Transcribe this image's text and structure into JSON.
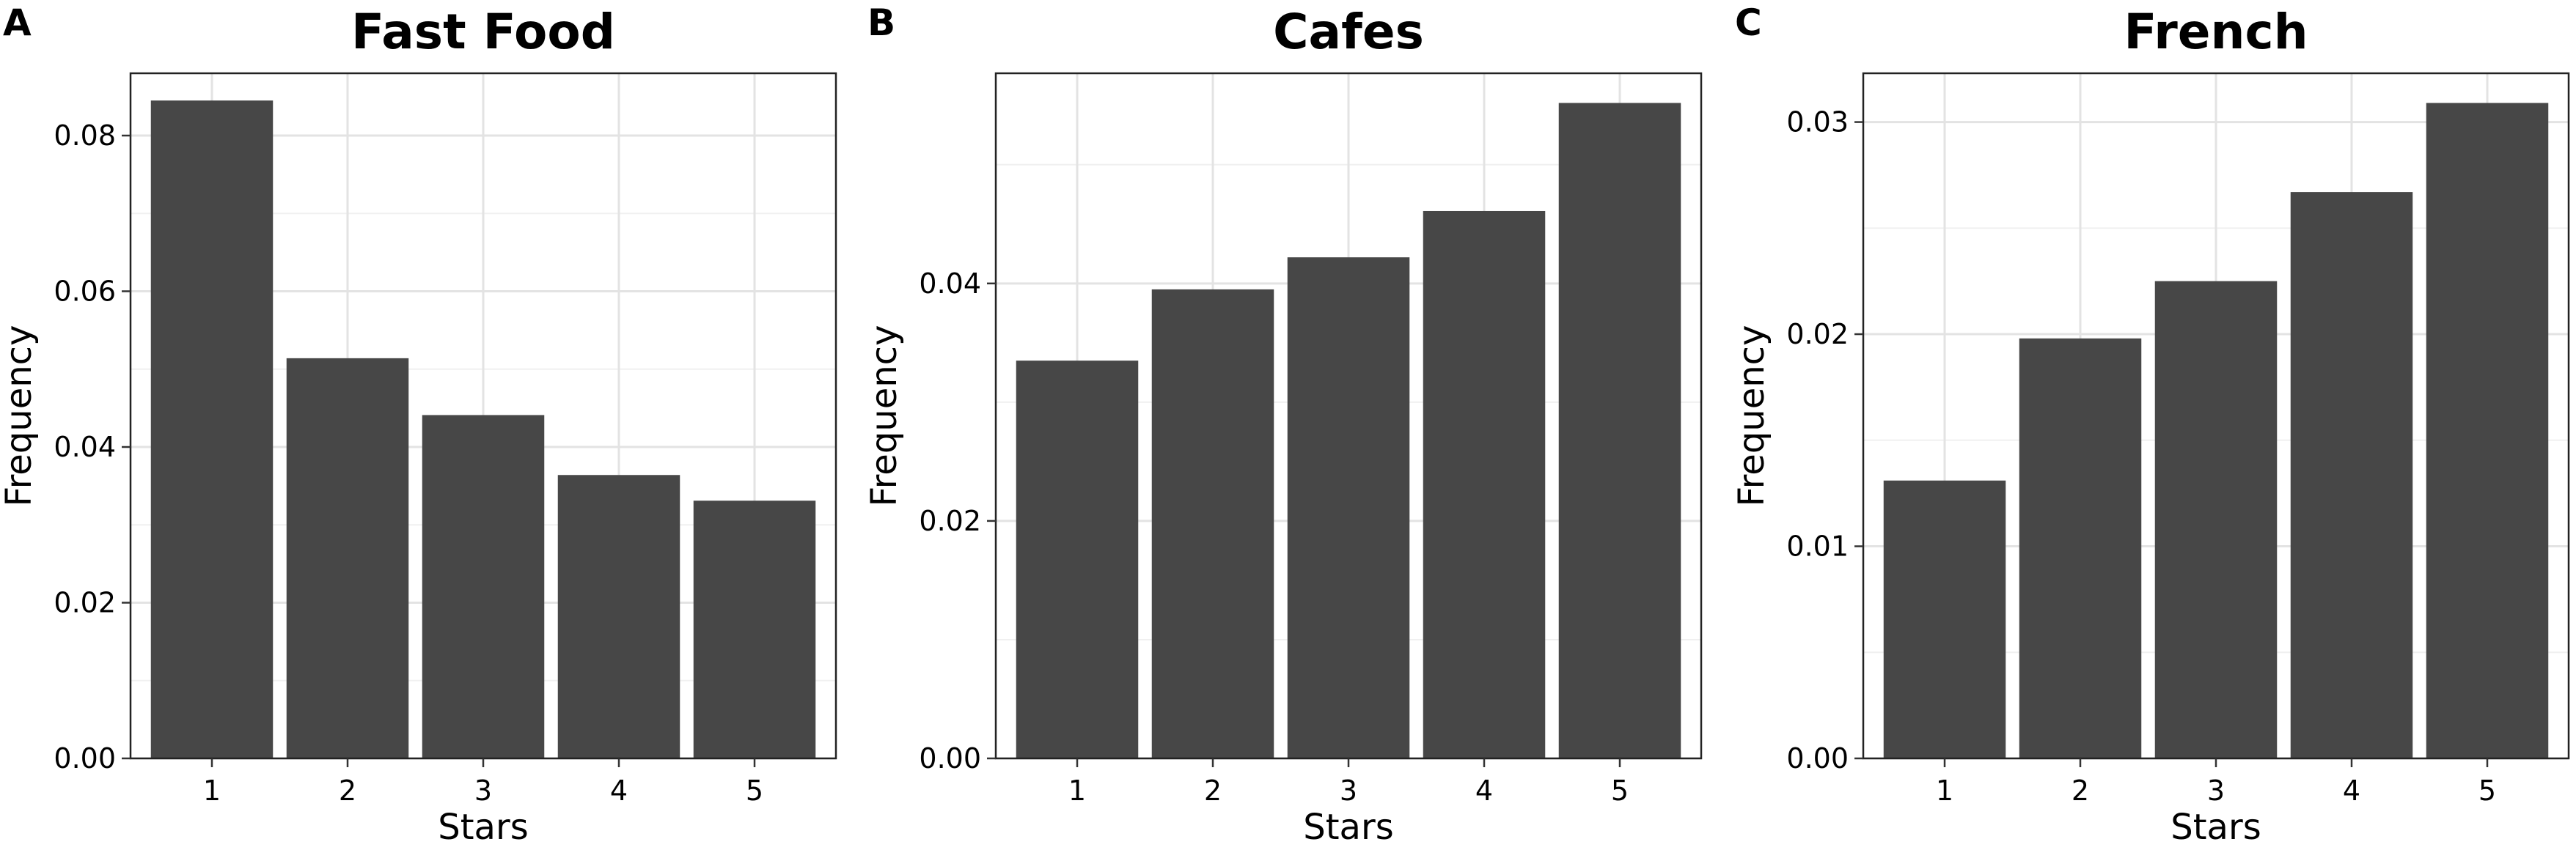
{
  "chart_data": [
    {
      "panel": "A",
      "type": "bar",
      "title": "Fast Food",
      "xlabel": "Stars",
      "ylabel": "Frequency",
      "categories": [
        "1",
        "2",
        "3",
        "4",
        "5"
      ],
      "values": [
        0.0845,
        0.0514,
        0.0441,
        0.0364,
        0.0331
      ],
      "ylim": [
        0,
        0.088
      ],
      "yticks": [
        0.0,
        0.02,
        0.04,
        0.06,
        0.08
      ],
      "ytick_labels": [
        "0.00",
        "0.02",
        "0.04",
        "0.06",
        "0.08"
      ],
      "grid": true
    },
    {
      "panel": "B",
      "type": "bar",
      "title": "Cafes",
      "xlabel": "Stars",
      "ylabel": "Frequency",
      "categories": [
        "1",
        "2",
        "3",
        "4",
        "5"
      ],
      "values": [
        0.0335,
        0.0395,
        0.0422,
        0.0461,
        0.0552
      ],
      "ylim": [
        0,
        0.0577
      ],
      "yticks": [
        0.0,
        0.02,
        0.04
      ],
      "ytick_labels": [
        "0.00",
        "0.02",
        "0.04"
      ],
      "grid": true
    },
    {
      "panel": "C",
      "type": "bar",
      "title": "French",
      "xlabel": "Stars",
      "ylabel": "Frequency",
      "categories": [
        "1",
        "2",
        "3",
        "4",
        "5"
      ],
      "values": [
        0.0131,
        0.0198,
        0.0225,
        0.0267,
        0.0309
      ],
      "ylim": [
        0,
        0.0323
      ],
      "yticks": [
        0.0,
        0.01,
        0.02,
        0.03
      ],
      "ytick_labels": [
        "0.00",
        "0.01",
        "0.02",
        "0.03"
      ],
      "grid": true
    }
  ],
  "colors": {
    "bar": "#474747",
    "grid": "#e3e3e3",
    "background": "#ffffff",
    "border": "#222222"
  }
}
